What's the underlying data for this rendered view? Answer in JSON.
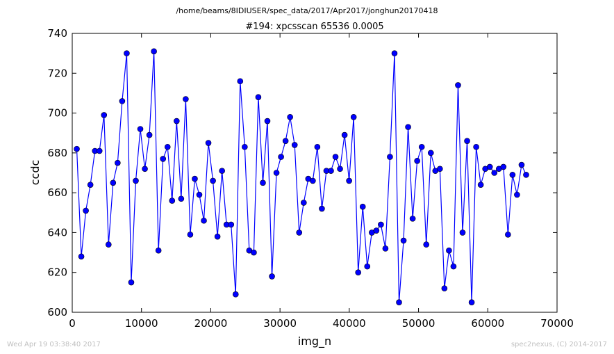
{
  "header": {
    "path": "/home/beams/8IDIUSER/spec_data/2017/Apr2017/jonghun20170418"
  },
  "footer": {
    "timestamp": "Wed Apr 19 03:38:40 2017",
    "credit": "spec2nexus, (C) 2014-2017"
  },
  "chart_data": {
    "type": "line",
    "title": "#194: xpcsscan 65536 0.0005",
    "xlabel": "img_n",
    "ylabel": "ccdc",
    "xlim": [
      0,
      70000
    ],
    "ylim": [
      600,
      740
    ],
    "xticks": [
      "0",
      "10000",
      "20000",
      "30000",
      "40000",
      "50000",
      "60000",
      "70000"
    ],
    "yticks": [
      "600",
      "620",
      "640",
      "660",
      "680",
      "700",
      "720",
      "740"
    ],
    "grid": false,
    "markers": true,
    "color": "#0000ff",
    "x": [
      655,
      1311,
      1966,
      2621,
      3277,
      3932,
      4588,
      5243,
      5898,
      6554,
      7209,
      7864,
      8520,
      9175,
      9830,
      10486,
      11141,
      11796,
      12452,
      13107,
      13763,
      14418,
      15073,
      15729,
      16384,
      17039,
      17695,
      18350,
      19005,
      19661,
      20316,
      20972,
      21627,
      22282,
      22938,
      23593,
      24248,
      24904,
      25559,
      26214,
      26870,
      27525,
      28180,
      28836,
      29491,
      30147,
      30802,
      31457,
      32113,
      32768,
      33423,
      34079,
      34734,
      35389,
      36045,
      36700,
      37356,
      38011,
      38666,
      39322,
      39977,
      40632,
      41288,
      41943,
      42598,
      43254,
      43909,
      44564,
      45220,
      45875,
      46531,
      47186,
      47841,
      48497,
      49152,
      49807,
      50463,
      51118,
      51773,
      52429,
      53084,
      53740,
      54395,
      55050,
      55706,
      56361,
      57016,
      57672,
      58327,
      58982,
      59638,
      60293,
      60948,
      61604,
      62259,
      62915,
      63570,
      64225,
      64881,
      65536
    ],
    "series": [
      {
        "values": [
          682,
          628,
          651,
          664,
          681,
          681,
          699,
          634,
          665,
          675,
          706,
          730,
          615,
          666,
          692,
          672,
          689,
          731,
          631,
          677,
          683,
          656,
          696,
          657,
          707,
          639,
          667,
          659,
          646,
          685,
          666,
          638,
          671,
          644,
          644,
          609,
          716,
          683,
          631,
          630,
          708,
          665,
          696,
          618,
          670,
          678,
          686,
          698,
          684,
          640,
          655,
          667,
          666,
          683,
          652,
          671,
          671,
          678,
          672,
          689,
          666,
          698,
          620,
          653,
          623,
          640,
          641,
          644,
          632,
          678,
          730,
          605,
          636,
          693,
          647,
          676,
          683,
          634,
          680,
          671,
          672,
          612,
          631,
          623,
          714,
          640,
          686,
          605,
          683,
          664,
          672,
          673,
          670,
          672,
          673,
          639,
          669,
          659,
          674,
          669
        ]
      }
    ]
  }
}
